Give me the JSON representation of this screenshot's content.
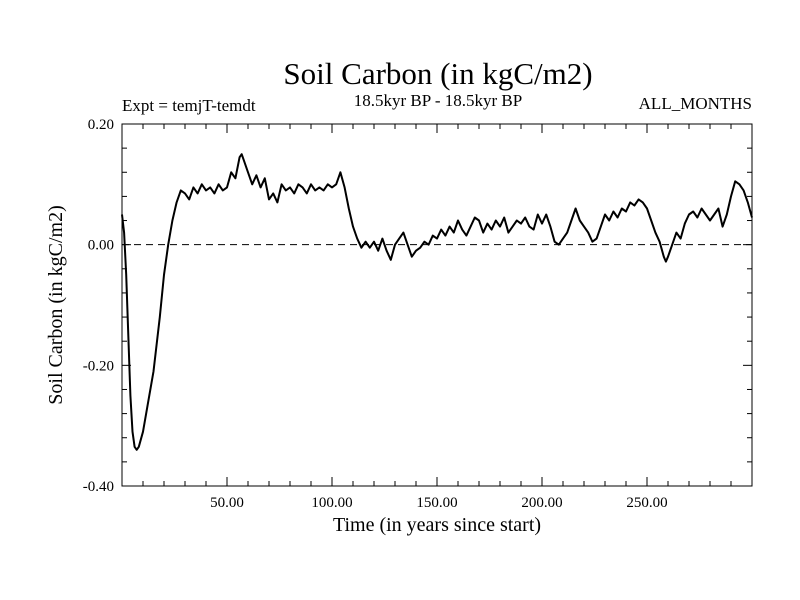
{
  "chart_data": {
    "type": "line",
    "title": "Soil Carbon (in kgC/m2)",
    "subtitle_left": "Expt = temjT-temdt",
    "subtitle_center": "18.5kyr BP - 18.5kyr BP",
    "subtitle_right": "ALL_MONTHS",
    "xlabel": "Time (in years since start)",
    "ylabel": "Soil Carbon (in kgC/m2)",
    "xlim": [
      0,
      300
    ],
    "ylim": [
      -0.4,
      0.2
    ],
    "x_ticks": [
      50,
      100,
      150,
      200,
      250
    ],
    "x_tick_labels": [
      "50.00",
      "100.00",
      "150.00",
      "200.00",
      "250.00"
    ],
    "y_ticks": [
      0.2,
      0.0,
      -0.2,
      -0.4
    ],
    "y_tick_labels": [
      "0.20",
      "0.00",
      "-0.20",
      "-0.40"
    ],
    "reference_line": 0.0,
    "series": [
      {
        "name": "Soil Carbon",
        "x": [
          0,
          1,
          2,
          3,
          4,
          5,
          6,
          7,
          8,
          10,
          12,
          15,
          18,
          20,
          22,
          24,
          26,
          28,
          30,
          32,
          34,
          36,
          38,
          40,
          42,
          44,
          46,
          48,
          50,
          52,
          54,
          56,
          57,
          58,
          60,
          62,
          64,
          66,
          68,
          70,
          72,
          74,
          76,
          78,
          80,
          82,
          84,
          86,
          88,
          90,
          92,
          94,
          96,
          98,
          100,
          102,
          104,
          106,
          108,
          110,
          112,
          114,
          116,
          118,
          120,
          122,
          124,
          126,
          128,
          130,
          132,
          134,
          136,
          138,
          140,
          142,
          144,
          146,
          148,
          150,
          152,
          154,
          156,
          158,
          160,
          162,
          164,
          166,
          168,
          170,
          172,
          174,
          176,
          178,
          180,
          182,
          184,
          186,
          188,
          190,
          192,
          194,
          196,
          198,
          200,
          202,
          204,
          206,
          208,
          210,
          212,
          214,
          216,
          218,
          220,
          222,
          224,
          226,
          228,
          230,
          232,
          234,
          236,
          238,
          240,
          242,
          244,
          246,
          248,
          250,
          252,
          254,
          256,
          258,
          259,
          260,
          262,
          264,
          266,
          268,
          270,
          272,
          274,
          276,
          278,
          280,
          282,
          284,
          286,
          288,
          290,
          292,
          294,
          296,
          298,
          300
        ],
        "y": [
          0.05,
          0.02,
          -0.05,
          -0.15,
          -0.25,
          -0.31,
          -0.335,
          -0.34,
          -0.335,
          -0.31,
          -0.27,
          -0.21,
          -0.12,
          -0.05,
          0.0,
          0.04,
          0.07,
          0.09,
          0.085,
          0.075,
          0.095,
          0.085,
          0.1,
          0.09,
          0.095,
          0.085,
          0.1,
          0.09,
          0.095,
          0.12,
          0.11,
          0.145,
          0.15,
          0.14,
          0.12,
          0.1,
          0.115,
          0.095,
          0.11,
          0.075,
          0.085,
          0.07,
          0.1,
          0.09,
          0.095,
          0.085,
          0.1,
          0.095,
          0.085,
          0.1,
          0.09,
          0.095,
          0.09,
          0.1,
          0.095,
          0.1,
          0.12,
          0.095,
          0.06,
          0.03,
          0.01,
          -0.005,
          0.005,
          -0.005,
          0.005,
          -0.01,
          0.01,
          -0.01,
          -0.025,
          0.0,
          0.01,
          0.02,
          0.0,
          -0.02,
          -0.01,
          -0.005,
          0.005,
          0.0,
          0.015,
          0.01,
          0.025,
          0.015,
          0.03,
          0.02,
          0.04,
          0.025,
          0.015,
          0.03,
          0.045,
          0.04,
          0.02,
          0.035,
          0.025,
          0.04,
          0.03,
          0.045,
          0.02,
          0.03,
          0.04,
          0.035,
          0.045,
          0.03,
          0.025,
          0.05,
          0.035,
          0.05,
          0.03,
          0.005,
          0.0,
          0.01,
          0.02,
          0.04,
          0.06,
          0.04,
          0.03,
          0.02,
          0.005,
          0.01,
          0.03,
          0.05,
          0.04,
          0.055,
          0.045,
          0.06,
          0.055,
          0.07,
          0.065,
          0.075,
          0.07,
          0.06,
          0.04,
          0.02,
          0.005,
          -0.02,
          -0.028,
          -0.02,
          0.0,
          0.02,
          0.01,
          0.035,
          0.05,
          0.055,
          0.045,
          0.06,
          0.05,
          0.04,
          0.05,
          0.06,
          0.03,
          0.05,
          0.08,
          0.105,
          0.1,
          0.09,
          0.07,
          0.045
        ]
      }
    ]
  }
}
